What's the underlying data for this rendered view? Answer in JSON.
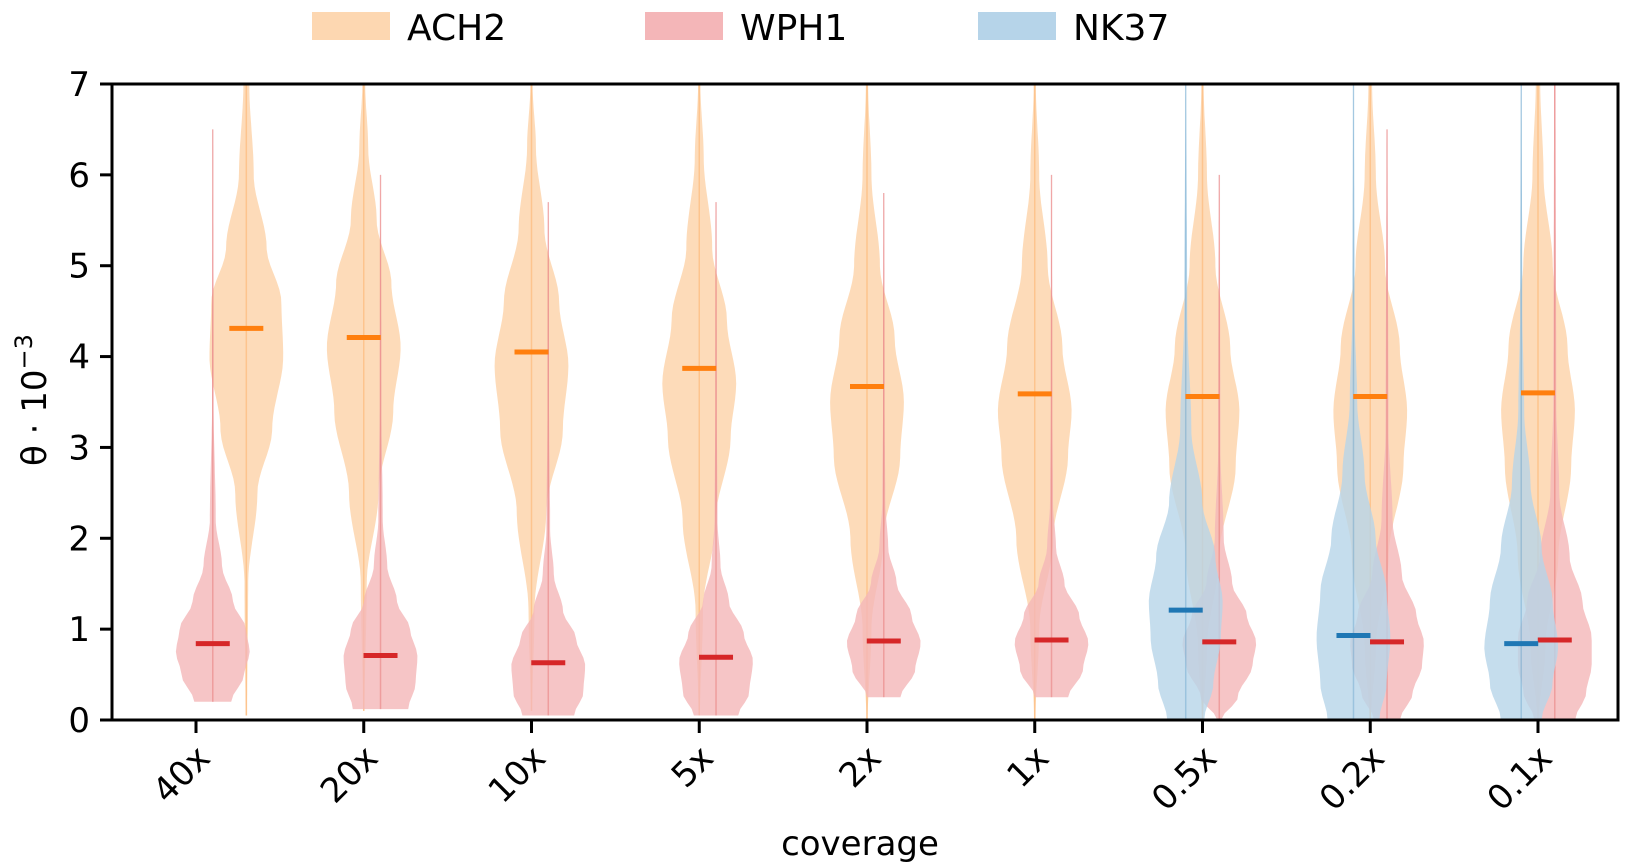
{
  "chart_data": {
    "type": "violin",
    "title": "",
    "xlabel": "coverage",
    "ylabel": "θ · 10⁻³",
    "ylabel_parts": {
      "main": "θ · 10",
      "exp": "−3"
    },
    "ylim": [
      0,
      7
    ],
    "yticks": [
      0,
      1,
      2,
      3,
      4,
      5,
      6,
      7
    ],
    "grid": false,
    "legend_position": "top-center-outside",
    "categories": [
      "40x",
      "20x",
      "10x",
      "5x",
      "2x",
      "1x",
      "0.5x",
      "0.2x",
      "0.1x"
    ],
    "series": [
      {
        "name": "ACH2",
        "fill": "#fdd7b1",
        "median_color": "#ff7f0e",
        "offsets": [
          0.3,
          0,
          0,
          0,
          0,
          0,
          0,
          0,
          0
        ],
        "medians": [
          4.31,
          4.21,
          4.05,
          3.87,
          3.67,
          3.59,
          3.56,
          3.56,
          3.6
        ],
        "ranges": [
          [
            0.05,
            7.0
          ],
          [
            0.1,
            7.0
          ],
          [
            0.1,
            7.0
          ],
          [
            0.05,
            7.0
          ],
          [
            0.0,
            7.0
          ],
          [
            0.0,
            7.0
          ],
          [
            0.0,
            7.0
          ],
          [
            0.0,
            7.0
          ],
          [
            0.0,
            7.0
          ]
        ],
        "shapes": [
          [
            [
              0.05,
              0.02
            ],
            [
              1.5,
              0.05
            ],
            [
              2.5,
              0.3
            ],
            [
              3.2,
              0.7
            ],
            [
              4.0,
              1.0
            ],
            [
              4.6,
              0.95
            ],
            [
              5.2,
              0.55
            ],
            [
              6.0,
              0.2
            ],
            [
              7.0,
              0.08
            ]
          ],
          [
            [
              0.1,
              0.02
            ],
            [
              1.5,
              0.08
            ],
            [
              2.5,
              0.4
            ],
            [
              3.4,
              0.8
            ],
            [
              4.1,
              1.0
            ],
            [
              4.8,
              0.75
            ],
            [
              5.5,
              0.35
            ],
            [
              6.3,
              0.12
            ],
            [
              7.0,
              0.04
            ]
          ],
          [
            [
              0.1,
              0.02
            ],
            [
              1.2,
              0.08
            ],
            [
              2.3,
              0.4
            ],
            [
              3.2,
              0.85
            ],
            [
              3.9,
              1.0
            ],
            [
              4.6,
              0.75
            ],
            [
              5.4,
              0.35
            ],
            [
              6.3,
              0.12
            ],
            [
              7.0,
              0.03
            ]
          ],
          [
            [
              0.05,
              0.02
            ],
            [
              1.2,
              0.1
            ],
            [
              2.2,
              0.45
            ],
            [
              3.1,
              0.85
            ],
            [
              3.7,
              1.0
            ],
            [
              4.4,
              0.75
            ],
            [
              5.2,
              0.35
            ],
            [
              6.2,
              0.12
            ],
            [
              7.0,
              0.03
            ]
          ],
          [
            [
              0.0,
              0.02
            ],
            [
              1.0,
              0.12
            ],
            [
              2.0,
              0.45
            ],
            [
              2.9,
              0.9
            ],
            [
              3.5,
              1.0
            ],
            [
              4.2,
              0.75
            ],
            [
              5.0,
              0.35
            ],
            [
              6.0,
              0.12
            ],
            [
              7.0,
              0.03
            ]
          ],
          [
            [
              0.0,
              0.02
            ],
            [
              1.0,
              0.12
            ],
            [
              2.0,
              0.5
            ],
            [
              2.9,
              0.9
            ],
            [
              3.4,
              1.0
            ],
            [
              4.1,
              0.75
            ],
            [
              5.0,
              0.35
            ],
            [
              6.0,
              0.12
            ],
            [
              7.0,
              0.03
            ]
          ],
          [
            [
              0.0,
              0.02
            ],
            [
              0.8,
              0.12
            ],
            [
              1.8,
              0.45
            ],
            [
              2.8,
              0.9
            ],
            [
              3.4,
              1.0
            ],
            [
              4.1,
              0.75
            ],
            [
              5.0,
              0.35
            ],
            [
              6.0,
              0.12
            ],
            [
              7.0,
              0.03
            ]
          ],
          [
            [
              0.0,
              0.02
            ],
            [
              0.8,
              0.15
            ],
            [
              1.8,
              0.5
            ],
            [
              2.8,
              0.9
            ],
            [
              3.4,
              1.0
            ],
            [
              4.1,
              0.8
            ],
            [
              5.0,
              0.4
            ],
            [
              6.0,
              0.15
            ],
            [
              7.0,
              0.05
            ]
          ],
          [
            [
              0.0,
              0.02
            ],
            [
              0.8,
              0.2
            ],
            [
              1.8,
              0.55
            ],
            [
              2.8,
              0.9
            ],
            [
              3.4,
              1.0
            ],
            [
              4.1,
              0.8
            ],
            [
              5.0,
              0.4
            ],
            [
              6.0,
              0.15
            ],
            [
              7.0,
              0.06
            ]
          ]
        ]
      },
      {
        "name": "WPH1",
        "fill": "#f4b6b8",
        "median_color": "#d62728",
        "offsets": [
          0.1,
          0.1,
          0.1,
          0.1,
          0.1,
          0.1,
          0.1,
          0.1,
          0.1
        ],
        "medians": [
          0.84,
          0.71,
          0.63,
          0.69,
          0.87,
          0.88,
          0.86,
          0.86,
          0.88
        ],
        "ranges": [
          [
            0.2,
            6.5
          ],
          [
            0.12,
            6.0
          ],
          [
            0.05,
            5.7
          ],
          [
            0.05,
            5.7
          ],
          [
            0.25,
            5.8
          ],
          [
            0.25,
            6.0
          ],
          [
            0.0,
            6.0
          ],
          [
            0.0,
            6.5
          ],
          [
            0.0,
            7.0
          ]
        ],
        "shapes": [
          [
            [
              0.2,
              0.5
            ],
            [
              0.5,
              0.85
            ],
            [
              0.75,
              1.0
            ],
            [
              1.0,
              0.9
            ],
            [
              1.3,
              0.55
            ],
            [
              1.7,
              0.25
            ],
            [
              2.2,
              0.08
            ],
            [
              3.5,
              0.02
            ],
            [
              6.5,
              0.01
            ]
          ],
          [
            [
              0.12,
              0.75
            ],
            [
              0.4,
              0.95
            ],
            [
              0.7,
              1.0
            ],
            [
              1.0,
              0.8
            ],
            [
              1.3,
              0.45
            ],
            [
              1.7,
              0.18
            ],
            [
              2.2,
              0.06
            ],
            [
              3.5,
              0.02
            ],
            [
              6.0,
              0.01
            ]
          ],
          [
            [
              0.05,
              0.7
            ],
            [
              0.3,
              0.95
            ],
            [
              0.6,
              1.0
            ],
            [
              0.9,
              0.75
            ],
            [
              1.2,
              0.4
            ],
            [
              1.6,
              0.15
            ],
            [
              2.1,
              0.05
            ],
            [
              3.5,
              0.02
            ],
            [
              5.7,
              0.01
            ]
          ],
          [
            [
              0.05,
              0.6
            ],
            [
              0.3,
              0.9
            ],
            [
              0.65,
              1.0
            ],
            [
              0.95,
              0.75
            ],
            [
              1.3,
              0.35
            ],
            [
              1.7,
              0.12
            ],
            [
              2.2,
              0.04
            ],
            [
              3.5,
              0.02
            ],
            [
              5.7,
              0.01
            ]
          ],
          [
            [
              0.25,
              0.45
            ],
            [
              0.55,
              0.85
            ],
            [
              0.85,
              1.0
            ],
            [
              1.15,
              0.75
            ],
            [
              1.5,
              0.35
            ],
            [
              1.9,
              0.12
            ],
            [
              2.4,
              0.04
            ],
            [
              3.5,
              0.02
            ],
            [
              5.8,
              0.01
            ]
          ],
          [
            [
              0.25,
              0.45
            ],
            [
              0.55,
              0.85
            ],
            [
              0.85,
              1.0
            ],
            [
              1.15,
              0.75
            ],
            [
              1.5,
              0.35
            ],
            [
              1.9,
              0.12
            ],
            [
              2.4,
              0.04
            ],
            [
              3.5,
              0.02
            ],
            [
              6.0,
              0.01
            ]
          ],
          [
            [
              0.0,
              0.05
            ],
            [
              0.25,
              0.5
            ],
            [
              0.6,
              0.9
            ],
            [
              0.85,
              1.0
            ],
            [
              1.15,
              0.75
            ],
            [
              1.5,
              0.35
            ],
            [
              2.0,
              0.12
            ],
            [
              3.0,
              0.03
            ],
            [
              6.0,
              0.01
            ]
          ],
          [
            [
              0.0,
              0.35
            ],
            [
              0.3,
              0.7
            ],
            [
              0.6,
              0.95
            ],
            [
              0.85,
              1.0
            ],
            [
              1.15,
              0.8
            ],
            [
              1.6,
              0.4
            ],
            [
              2.2,
              0.15
            ],
            [
              3.2,
              0.04
            ],
            [
              6.5,
              0.01
            ]
          ],
          [
            [
              0.0,
              0.55
            ],
            [
              0.3,
              0.85
            ],
            [
              0.6,
              1.0
            ],
            [
              0.9,
              1.0
            ],
            [
              1.3,
              0.75
            ],
            [
              1.8,
              0.4
            ],
            [
              2.5,
              0.12
            ],
            [
              3.5,
              0.04
            ],
            [
              7.0,
              0.02
            ]
          ]
        ]
      },
      {
        "name": "NK37",
        "fill": "#b6d4e9",
        "median_color": "#1f77b4",
        "offsets": [
          -0.1,
          -0.1,
          -0.1,
          -0.1,
          -0.1,
          -0.1,
          -0.1,
          -0.1,
          -0.1
        ],
        "medians": [
          null,
          null,
          null,
          null,
          null,
          null,
          1.21,
          0.93,
          0.84
        ],
        "ranges": [
          null,
          null,
          null,
          null,
          null,
          null,
          [
            0.0,
            7.0
          ],
          [
            0.0,
            7.0
          ],
          [
            0.0,
            7.0
          ]
        ],
        "shapes": [
          null,
          null,
          null,
          null,
          null,
          null,
          [
            [
              0.0,
              0.5
            ],
            [
              0.4,
              0.75
            ],
            [
              0.9,
              0.95
            ],
            [
              1.3,
              1.0
            ],
            [
              1.8,
              0.8
            ],
            [
              2.4,
              0.45
            ],
            [
              3.2,
              0.15
            ],
            [
              4.5,
              0.04
            ],
            [
              7.0,
              0.01
            ]
          ],
          [
            [
              0.0,
              0.7
            ],
            [
              0.4,
              0.9
            ],
            [
              0.9,
              1.0
            ],
            [
              1.4,
              0.9
            ],
            [
              2.0,
              0.6
            ],
            [
              2.7,
              0.3
            ],
            [
              3.5,
              0.1
            ],
            [
              4.5,
              0.03
            ],
            [
              7.0,
              0.01
            ]
          ],
          [
            [
              0.0,
              0.55
            ],
            [
              0.4,
              0.85
            ],
            [
              0.8,
              1.0
            ],
            [
              1.3,
              0.85
            ],
            [
              1.9,
              0.55
            ],
            [
              2.6,
              0.25
            ],
            [
              3.4,
              0.08
            ],
            [
              4.5,
              0.03
            ],
            [
              7.0,
              0.01
            ]
          ]
        ]
      }
    ]
  }
}
